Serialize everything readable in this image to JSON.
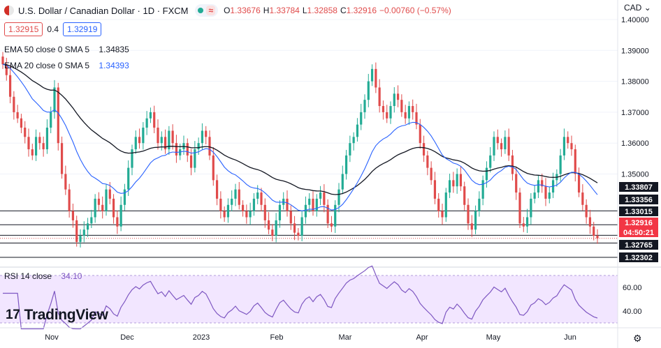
{
  "header": {
    "symbol_title": "U.S. Dollar / Canadian Dollar · 1D · FXCM",
    "status_symbol": "≈",
    "ohlc": [
      {
        "k": "O",
        "v": "1.33676"
      },
      {
        "k": "H",
        "v": "1.33784"
      },
      {
        "k": "L",
        "v": "1.32858"
      },
      {
        "k": "C",
        "v": "1.32916"
      },
      {
        "k": "",
        "v": "−0.00760 (−0.57%)"
      }
    ]
  },
  "bidask": {
    "bid": "1.32915",
    "spread": "0.4",
    "ask": "1.32919"
  },
  "indicators": [
    {
      "label": "EMA 50 close 0 SMA 5",
      "value": "1.34835",
      "color": "#131722"
    },
    {
      "label": "EMA 20 close 0 SMA 5",
      "value": "1.34393",
      "color": "#2962ff"
    }
  ],
  "currency": "CAD",
  "rsi": {
    "label": "RSI 14 close",
    "value": "34.10",
    "ticks": [
      "60.00",
      "40.00"
    ]
  },
  "price_axis": [
    "1.40000",
    "1.39000",
    "1.38000",
    "1.37000",
    "1.36000",
    "1.35000"
  ],
  "level_labels": [
    {
      "text": "1.33807",
      "style": "dark"
    },
    {
      "text": "1.33356",
      "style": "dark"
    },
    {
      "text": "1.33015",
      "style": "dark"
    },
    {
      "text": "1.32916",
      "style": "red"
    },
    {
      "text": "04:50:21",
      "style": "red"
    },
    {
      "text": "1.32765",
      "style": "dark"
    },
    {
      "text": "1.32302",
      "style": "dark"
    }
  ],
  "time_axis": [
    "Nov",
    "Dec",
    "2023",
    "Feb",
    "Mar",
    "Apr",
    "May",
    "Jun"
  ],
  "logo_text": "TradingView",
  "colors": {
    "up": "#22ab94",
    "down": "#e04b4b",
    "ema20": "#2962ff",
    "ema50": "#131722",
    "rsi": "#7e57c2",
    "rsi_band": "#f2e6ff"
  }
}
